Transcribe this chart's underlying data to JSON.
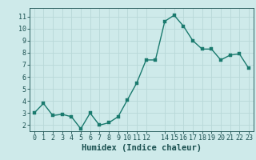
{
  "x": [
    0,
    1,
    2,
    3,
    4,
    5,
    6,
    7,
    8,
    9,
    10,
    11,
    12,
    13,
    14,
    15,
    16,
    17,
    18,
    19,
    20,
    21,
    22,
    23
  ],
  "y": [
    3.0,
    3.8,
    2.8,
    2.9,
    2.7,
    1.7,
    3.0,
    2.0,
    2.2,
    2.7,
    4.1,
    5.5,
    7.4,
    7.4,
    10.6,
    11.1,
    10.2,
    9.0,
    8.3,
    8.3,
    7.4,
    7.8,
    7.9,
    6.7
  ],
  "xlabel": "Humidex (Indice chaleur)",
  "bg_color": "#ceeaea",
  "line_color": "#1a7a6e",
  "marker_color": "#1a7a6e",
  "grid_color": "#b8d8d8",
  "text_color": "#1a5050",
  "ylim": [
    1.5,
    11.7
  ],
  "xlim": [
    -0.5,
    23.5
  ],
  "yticks": [
    2,
    3,
    4,
    5,
    6,
    7,
    8,
    9,
    10,
    11
  ],
  "xticks": [
    0,
    1,
    2,
    3,
    4,
    5,
    6,
    7,
    8,
    9,
    10,
    11,
    12,
    14,
    15,
    16,
    17,
    18,
    19,
    20,
    21,
    22,
    23
  ],
  "xlabel_fontsize": 7.5,
  "tick_fontsize": 6.0
}
